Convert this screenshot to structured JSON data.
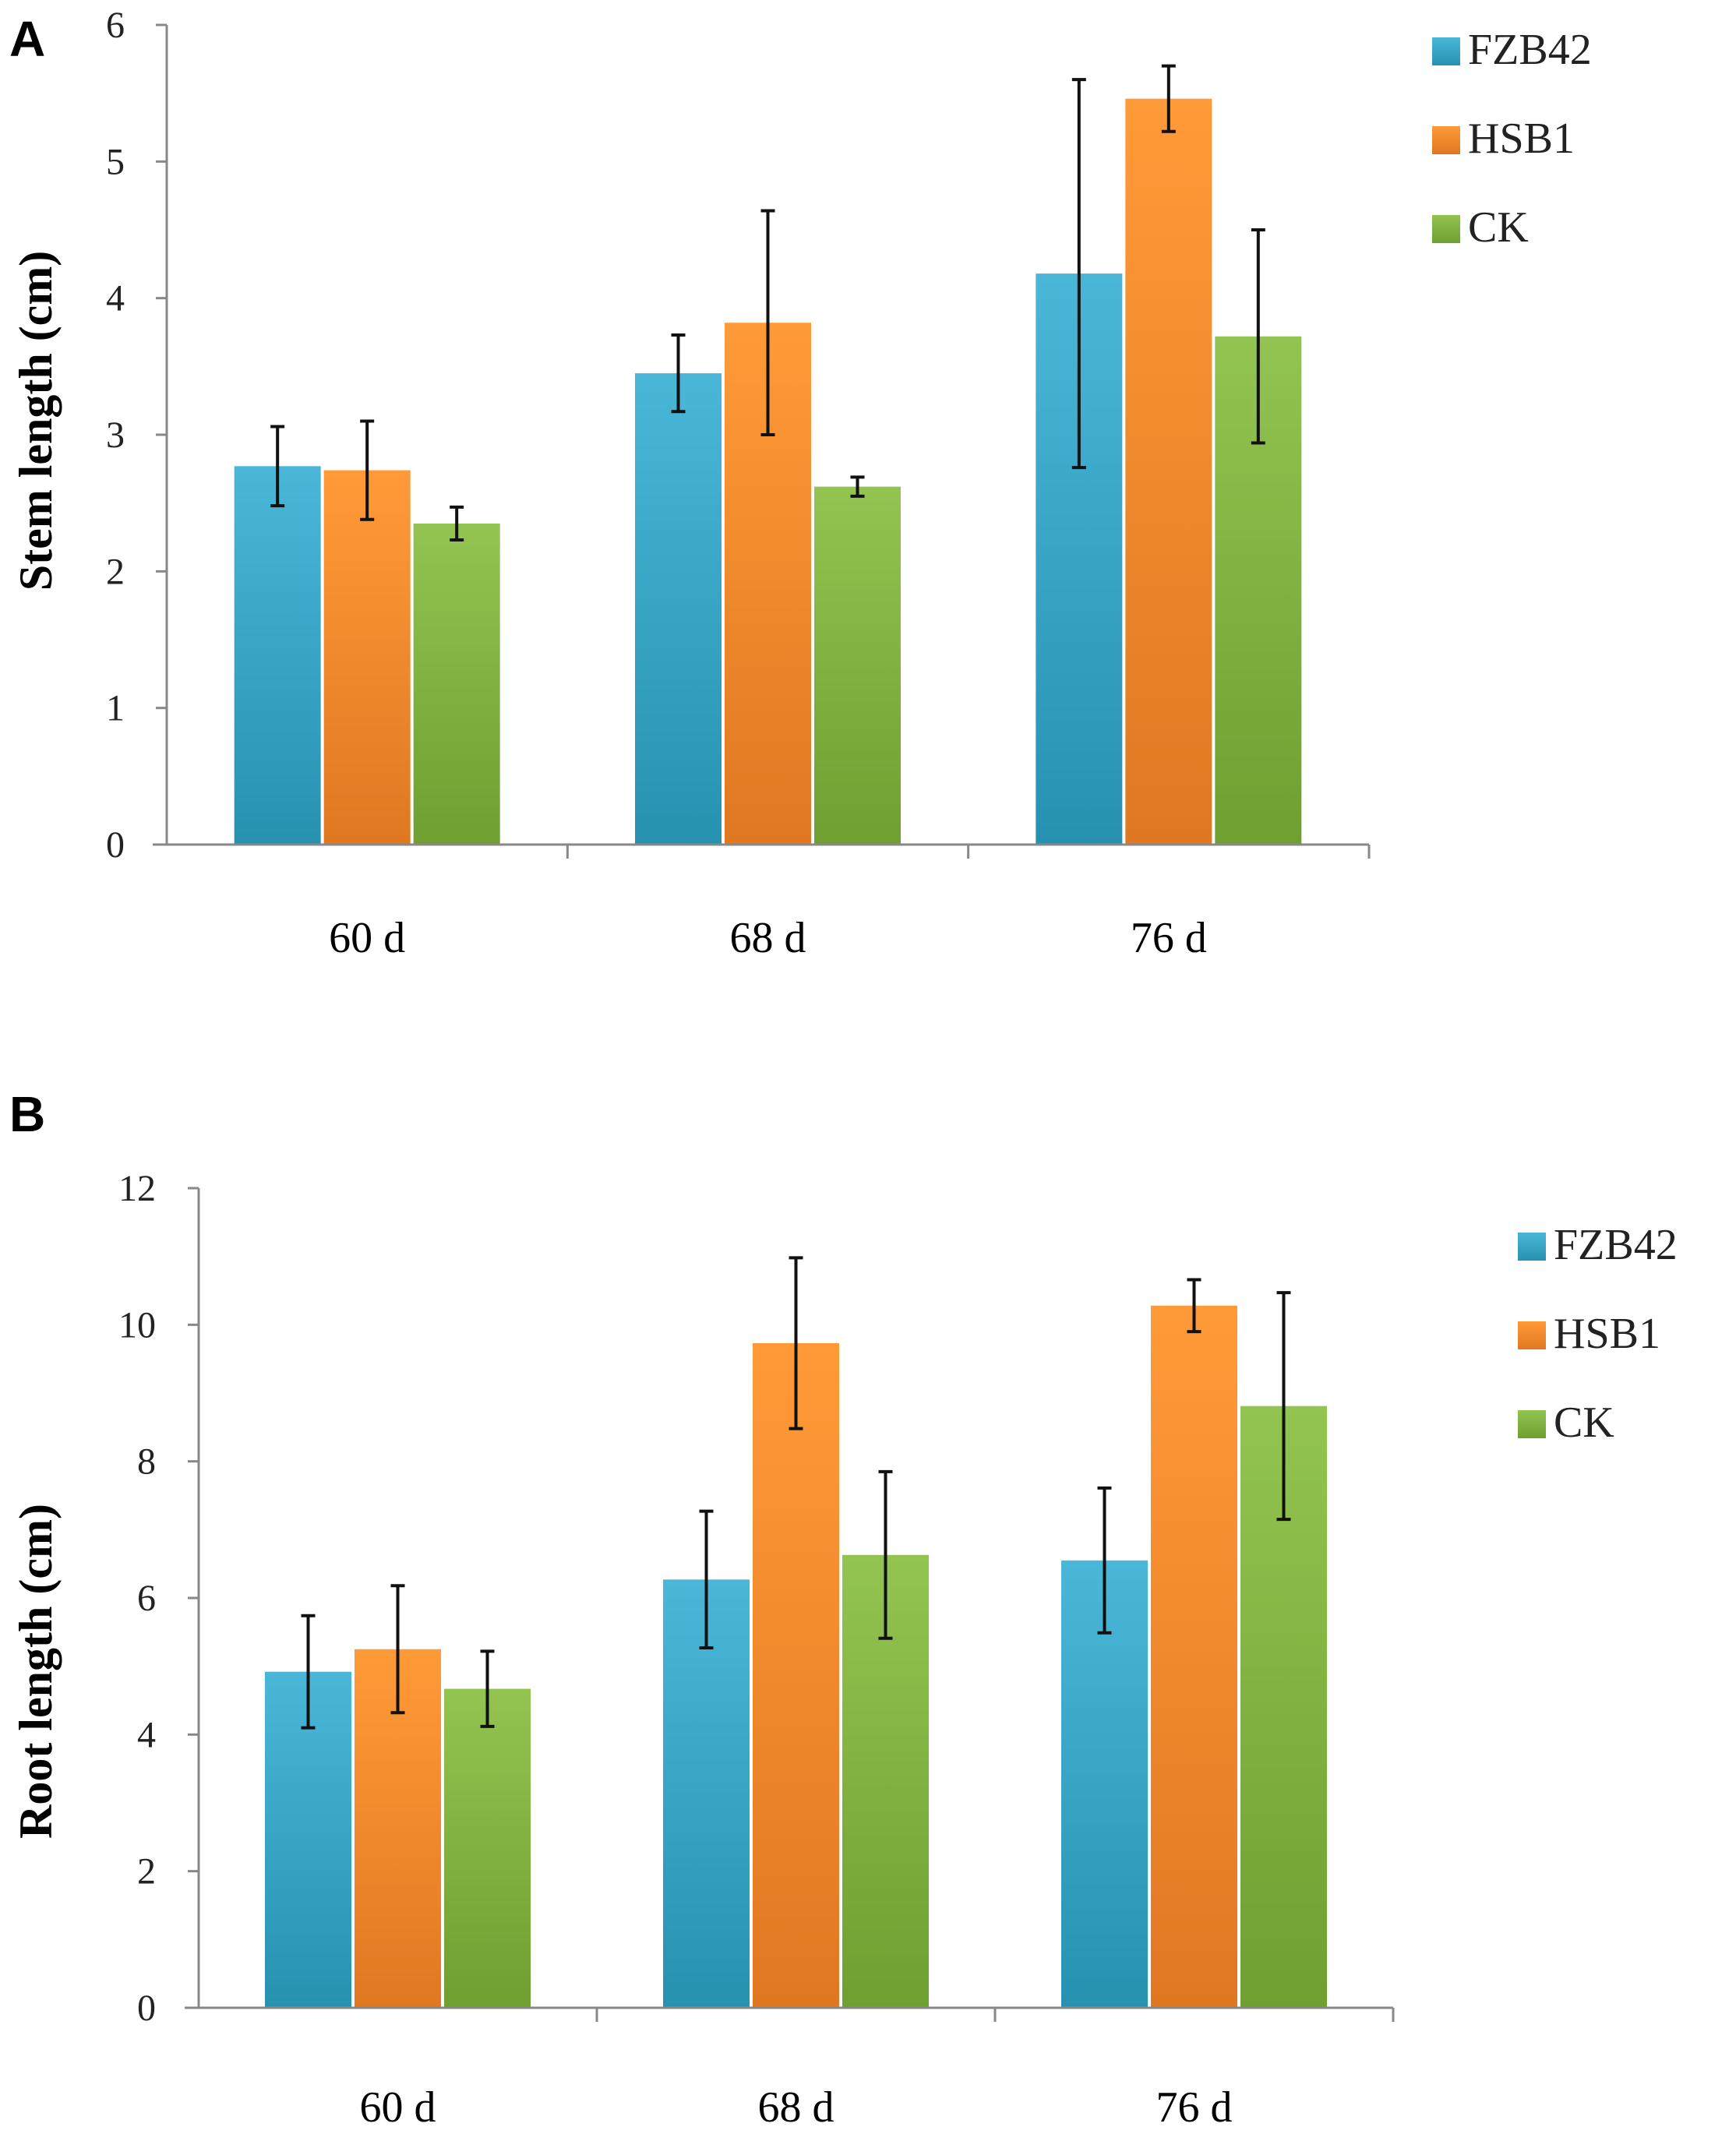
{
  "series_colors": {
    "FZB42": {
      "light": "#4ab7d9",
      "dark": "#2792b0"
    },
    "HSB1": {
      "light": "#ff9a38",
      "dark": "#e07822"
    },
    "CK": {
      "light": "#93c451",
      "dark": "#6f9f30"
    }
  },
  "chart_data": [
    {
      "panel": "A",
      "type": "bar",
      "title": "",
      "xlabel": "",
      "ylabel": "Stem length (cm)",
      "ylim": [
        0,
        6
      ],
      "yticks": [
        0,
        1,
        2,
        3,
        4,
        5,
        6
      ],
      "categories": [
        "60 d",
        "68 d",
        "76 d"
      ],
      "legend_position": "top-right",
      "series": [
        {
          "name": "FZB42",
          "values": [
            2.77,
            3.45,
            4.18
          ],
          "errors": [
            0.29,
            0.28,
            1.42
          ]
        },
        {
          "name": "HSB1",
          "values": [
            2.74,
            3.82,
            5.46
          ],
          "errors": [
            0.36,
            0.82,
            0.24
          ]
        },
        {
          "name": "CK",
          "values": [
            2.35,
            2.62,
            3.72
          ],
          "errors": [
            0.12,
            0.07,
            0.78
          ]
        }
      ]
    },
    {
      "panel": "B",
      "type": "bar",
      "title": "",
      "xlabel": "",
      "ylabel": "Root  length (cm)",
      "ylim": [
        0,
        12
      ],
      "yticks": [
        0,
        2,
        4,
        6,
        8,
        10,
        12
      ],
      "categories": [
        "60 d",
        "68 d",
        "76 d"
      ],
      "legend_position": "top-right",
      "series": [
        {
          "name": "FZB42",
          "values": [
            4.92,
            6.27,
            6.55
          ],
          "errors": [
            0.82,
            1.0,
            1.06
          ]
        },
        {
          "name": "HSB1",
          "values": [
            5.25,
            9.73,
            10.28
          ],
          "errors": [
            0.93,
            1.25,
            0.38
          ]
        },
        {
          "name": "CK",
          "values": [
            4.67,
            6.63,
            8.81
          ],
          "errors": [
            0.55,
            1.22,
            1.66
          ]
        }
      ]
    }
  ]
}
